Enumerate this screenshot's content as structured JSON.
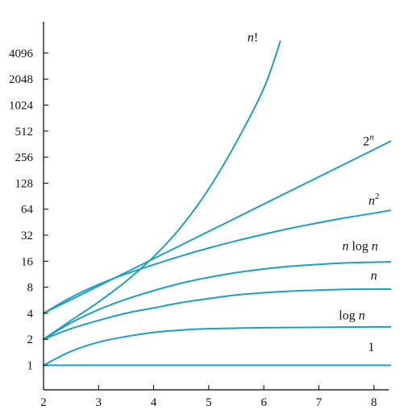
{
  "chart_data": {
    "type": "line",
    "title": "",
    "xlabel": "",
    "ylabel": "",
    "xlim": [
      2,
      8.3
    ],
    "ylim": [
      1,
      6000
    ],
    "y_scale": "log2",
    "grid": false,
    "line_color": "#1ba0c3",
    "x_ticks": [
      {
        "value": 2,
        "label": "2"
      },
      {
        "value": 3,
        "label": "3"
      },
      {
        "value": 4,
        "label": "4"
      },
      {
        "value": 5,
        "label": "5"
      },
      {
        "value": 6,
        "label": "6"
      },
      {
        "value": 7,
        "label": "7"
      },
      {
        "value": 8,
        "label": "8"
      }
    ],
    "y_ticks": [
      {
        "value": 1,
        "label": "1"
      },
      {
        "value": 2,
        "label": "2"
      },
      {
        "value": 4,
        "label": "4"
      },
      {
        "value": 8,
        "label": "8"
      },
      {
        "value": 16,
        "label": "16"
      },
      {
        "value": 32,
        "label": "32"
      },
      {
        "value": 64,
        "label": "64"
      },
      {
        "value": 128,
        "label": "128"
      },
      {
        "value": 256,
        "label": "256"
      },
      {
        "value": 512,
        "label": "512"
      },
      {
        "value": 1024,
        "label": "1024"
      },
      {
        "value": 2048,
        "label": "2048"
      },
      {
        "value": 4096,
        "label": "4096"
      }
    ],
    "series": [
      {
        "name": "1",
        "label_parts": [
          {
            "text": "1",
            "italic": false,
            "sup": false
          }
        ],
        "label_at": {
          "x": 7.95,
          "y": 1.45
        },
        "points": [
          [
            2,
            1
          ],
          [
            3,
            1
          ],
          [
            4,
            1
          ],
          [
            5,
            1
          ],
          [
            6,
            1
          ],
          [
            7,
            1
          ],
          [
            8,
            1
          ],
          [
            8.3,
            1
          ]
        ]
      },
      {
        "name": "log n",
        "label_parts": [
          {
            "text": "log ",
            "italic": false,
            "sup": false
          },
          {
            "text": "n",
            "italic": true,
            "sup": false
          }
        ],
        "label_at": {
          "x": 7.6,
          "y": 3.4
        },
        "points": [
          [
            2,
            1
          ],
          [
            2.5,
            1.45
          ],
          [
            3,
            1.85
          ],
          [
            3.5,
            2.15
          ],
          [
            4,
            2.4
          ],
          [
            4.5,
            2.55
          ],
          [
            5,
            2.65
          ],
          [
            6,
            2.72
          ],
          [
            7,
            2.75
          ],
          [
            8,
            2.78
          ],
          [
            8.3,
            2.78
          ]
        ]
      },
      {
        "name": "n",
        "label_parts": [
          {
            "text": "n",
            "italic": true,
            "sup": false
          }
        ],
        "label_at": {
          "x": 8.0,
          "y": 9.8
        },
        "points": [
          [
            2,
            2
          ],
          [
            2.5,
            2.65
          ],
          [
            3,
            3.3
          ],
          [
            3.5,
            4.0
          ],
          [
            4,
            4.6
          ],
          [
            4.5,
            5.3
          ],
          [
            5,
            5.9
          ],
          [
            5.5,
            6.5
          ],
          [
            6,
            6.9
          ],
          [
            6.5,
            7.2
          ],
          [
            7,
            7.4
          ],
          [
            7.5,
            7.55
          ],
          [
            8,
            7.6
          ],
          [
            8.3,
            7.6
          ]
        ]
      },
      {
        "name": "n log n",
        "label_parts": [
          {
            "text": "n",
            "italic": true,
            "sup": false
          },
          {
            "text": " log ",
            "italic": false,
            "sup": false
          },
          {
            "text": "n",
            "italic": true,
            "sup": false
          }
        ],
        "label_at": {
          "x": 7.75,
          "y": 21.5
        },
        "points": [
          [
            2,
            2
          ],
          [
            2.5,
            3.1
          ],
          [
            3,
            4.4
          ],
          [
            3.5,
            5.8
          ],
          [
            4,
            7.3
          ],
          [
            4.5,
            8.9
          ],
          [
            5,
            10.4
          ],
          [
            5.5,
            11.8
          ],
          [
            6,
            13
          ],
          [
            6.5,
            14
          ],
          [
            7,
            14.7
          ],
          [
            7.5,
            15.3
          ],
          [
            8,
            15.6
          ],
          [
            8.3,
            15.7
          ]
        ]
      },
      {
        "name": "n²",
        "label_parts": [
          {
            "text": "n",
            "italic": true,
            "sup": false
          },
          {
            "text": "2",
            "italic": false,
            "sup": true
          }
        ],
        "label_at": {
          "x": 8.0,
          "y": 72
        },
        "points": [
          [
            2,
            4
          ],
          [
            2.5,
            6.1
          ],
          [
            3,
            8.6
          ],
          [
            3.5,
            11.4
          ],
          [
            4,
            14.6
          ],
          [
            4.5,
            18.4
          ],
          [
            5,
            22.7
          ],
          [
            5.5,
            27.5
          ],
          [
            6,
            32.8
          ],
          [
            6.5,
            38.6
          ],
          [
            7,
            44.6
          ],
          [
            7.5,
            51
          ],
          [
            8,
            57.5
          ],
          [
            8.3,
            62
          ]
        ]
      },
      {
        "name": "2ⁿ",
        "label_parts": [
          {
            "text": "2",
            "italic": false,
            "sup": false
          },
          {
            "text": "n",
            "italic": true,
            "sup": true
          }
        ],
        "label_at": {
          "x": 7.9,
          "y": 350
        },
        "points": [
          [
            2,
            4
          ],
          [
            8.3,
            390
          ]
        ]
      },
      {
        "name": "n!",
        "label_parts": [
          {
            "text": "n",
            "italic": true,
            "sup": false
          },
          {
            "text": "!",
            "italic": false,
            "sup": false
          }
        ],
        "label_at": {
          "x": 5.8,
          "y": 5600
        },
        "points": [
          [
            2,
            2
          ],
          [
            2.5,
            3.3
          ],
          [
            3,
            5.4
          ],
          [
            3.5,
            9.4
          ],
          [
            4,
            18
          ],
          [
            4.5,
            40
          ],
          [
            5,
            110
          ],
          [
            5.5,
            380
          ],
          [
            6,
            1600
          ],
          [
            6.3,
            5600
          ]
        ]
      }
    ]
  }
}
